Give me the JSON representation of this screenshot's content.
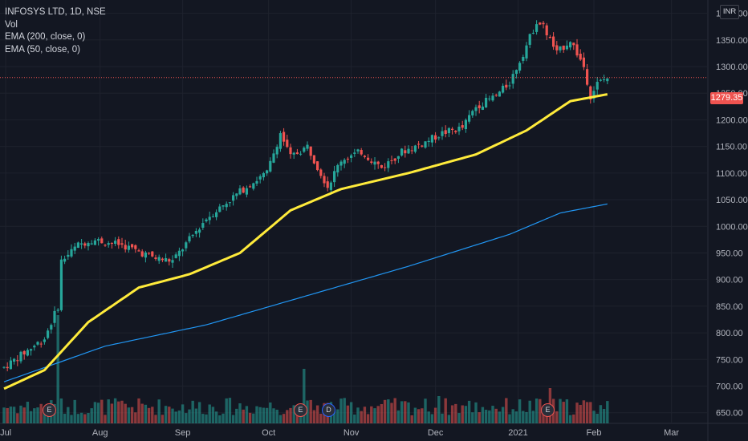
{
  "legend": {
    "title": "INFOSYS LTD, 1D, NSE",
    "vol": "Vol",
    "ema200": "EMA (200, close, 0)",
    "ema50": "EMA (50, close, 0)"
  },
  "currency_button": "INR",
  "last_price": "1279.35",
  "events": [
    {
      "label": "E",
      "kind": "earnings"
    },
    {
      "label": "E",
      "kind": "earnings"
    },
    {
      "label": "D",
      "kind": "dividend"
    },
    {
      "label": "E",
      "kind": "earnings"
    }
  ],
  "colors": {
    "background": "#131722",
    "up": "#26a69a",
    "down": "#ef5350",
    "ema50": "#ffeb3b",
    "ema200": "#2196f3",
    "grid": "#1e222d",
    "text": "#b2b5be"
  },
  "chart_data": {
    "type": "candlestick",
    "y_axis": {
      "ticks": [
        "1400.00",
        "1350.00",
        "1300.00",
        "1250.00",
        "1200.00",
        "1150.00",
        "1100.00",
        "1050.00",
        "1000.00",
        "950.00",
        "900.00",
        "850.00",
        "800.00",
        "750.00",
        "700.00",
        "650.00"
      ],
      "ylim": [
        630,
        1425
      ]
    },
    "x_axis": {
      "ticks": [
        "Jul",
        "Aug",
        "Sep",
        "Oct",
        "Nov",
        "Dec",
        "2021",
        "Feb",
        "Mar"
      ]
    },
    "price_keypoints": [
      {
        "t": 0,
        "price": 735
      },
      {
        "t": 12,
        "price": 790
      },
      {
        "t": 16,
        "price": 850
      },
      {
        "t": 17,
        "price": 935
      },
      {
        "t": 22,
        "price": 965
      },
      {
        "t": 26,
        "price": 975
      },
      {
        "t": 35,
        "price": 965
      },
      {
        "t": 45,
        "price": 940
      },
      {
        "t": 50,
        "price": 935
      },
      {
        "t": 55,
        "price": 975
      },
      {
        "t": 60,
        "price": 1015
      },
      {
        "t": 66,
        "price": 1045
      },
      {
        "t": 72,
        "price": 1075
      },
      {
        "t": 78,
        "price": 1100
      },
      {
        "t": 82,
        "price": 1175
      },
      {
        "t": 85,
        "price": 1130
      },
      {
        "t": 90,
        "price": 1150
      },
      {
        "t": 96,
        "price": 1075
      },
      {
        "t": 100,
        "price": 1125
      },
      {
        "t": 106,
        "price": 1140
      },
      {
        "t": 112,
        "price": 1110
      },
      {
        "t": 118,
        "price": 1140
      },
      {
        "t": 124,
        "price": 1155
      },
      {
        "t": 130,
        "price": 1175
      },
      {
        "t": 136,
        "price": 1185
      },
      {
        "t": 140,
        "price": 1225
      },
      {
        "t": 146,
        "price": 1245
      },
      {
        "t": 150,
        "price": 1270
      },
      {
        "t": 154,
        "price": 1325
      },
      {
        "t": 158,
        "price": 1385
      },
      {
        "t": 160,
        "price": 1375
      },
      {
        "t": 164,
        "price": 1325
      },
      {
        "t": 168,
        "price": 1350
      },
      {
        "t": 172,
        "price": 1300
      },
      {
        "t": 174,
        "price": 1245
      },
      {
        "t": 176,
        "price": 1268
      },
      {
        "t": 179,
        "price": 1279
      }
    ],
    "ema50_keypoints": [
      {
        "t": 0,
        "price": 695
      },
      {
        "t": 12,
        "price": 730
      },
      {
        "t": 25,
        "price": 820
      },
      {
        "t": 40,
        "price": 885
      },
      {
        "t": 55,
        "price": 910
      },
      {
        "t": 70,
        "price": 950
      },
      {
        "t": 85,
        "price": 1030
      },
      {
        "t": 100,
        "price": 1070
      },
      {
        "t": 120,
        "price": 1100
      },
      {
        "t": 140,
        "price": 1135
      },
      {
        "t": 155,
        "price": 1180
      },
      {
        "t": 168,
        "price": 1235
      },
      {
        "t": 179,
        "price": 1248
      }
    ],
    "ema200_keypoints": [
      {
        "t": 0,
        "price": 708
      },
      {
        "t": 30,
        "price": 775
      },
      {
        "t": 60,
        "price": 815
      },
      {
        "t": 90,
        "price": 870
      },
      {
        "t": 120,
        "price": 925
      },
      {
        "t": 150,
        "price": 985
      },
      {
        "t": 165,
        "price": 1025
      },
      {
        "t": 179,
        "price": 1042
      }
    ]
  }
}
